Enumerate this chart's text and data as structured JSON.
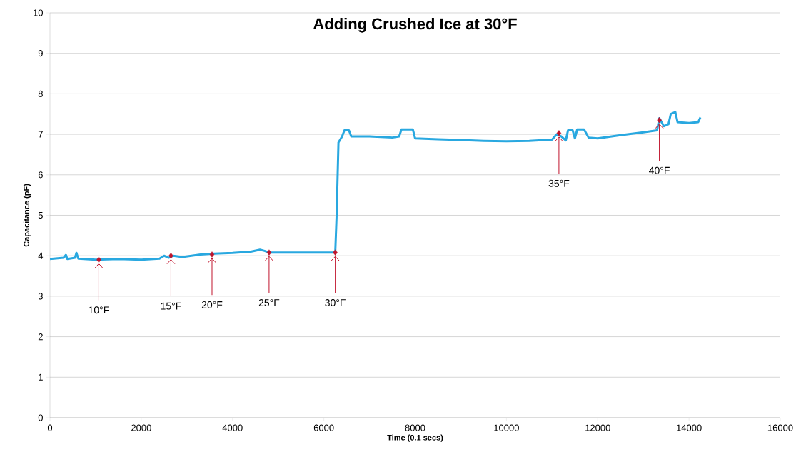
{
  "chart_data": {
    "type": "line",
    "title": "Adding Crushed Ice at 30°F",
    "xlabel": "Time (0.1 secs)",
    "ylabel": "Capacitance (pF)",
    "series": [
      {
        "color": "#29a8e0",
        "marker": "none",
        "x": [
          0,
          300,
          350,
          380,
          550,
          580,
          620,
          1000,
          1500,
          2000,
          2400,
          2500,
          2600,
          2700,
          2900,
          3300,
          3600,
          4000,
          4400,
          4600,
          4700,
          4800,
          5500,
          6250,
          6280,
          6320,
          6400,
          6450,
          6550,
          6600,
          7000,
          7500,
          7650,
          7700,
          7950,
          8000,
          8500,
          9000,
          9500,
          10000,
          10500,
          11000,
          11100,
          11200,
          11300,
          11350,
          11450,
          11500,
          11550,
          11700,
          11800,
          12000,
          12500,
          13000,
          13300,
          13350,
          13450,
          13550,
          13600,
          13700,
          13750,
          14000,
          14200,
          14250
        ],
        "values": [
          3.92,
          3.95,
          4.02,
          3.92,
          3.95,
          4.07,
          3.93,
          3.9,
          3.92,
          3.9,
          3.93,
          4.0,
          3.95,
          4.0,
          3.97,
          4.03,
          4.05,
          4.07,
          4.1,
          4.15,
          4.12,
          4.08,
          4.08,
          4.08,
          5.0,
          6.8,
          6.95,
          7.1,
          7.1,
          6.95,
          6.95,
          6.92,
          6.95,
          7.12,
          7.12,
          6.9,
          6.88,
          6.86,
          6.84,
          6.83,
          6.84,
          6.87,
          7.0,
          6.95,
          6.85,
          7.1,
          7.1,
          6.9,
          7.12,
          7.12,
          6.92,
          6.9,
          6.98,
          7.05,
          7.1,
          7.4,
          7.2,
          7.25,
          7.5,
          7.55,
          7.3,
          7.28,
          7.3,
          7.42
        ]
      },
      {
        "type": "scatter",
        "color": "#c0142c",
        "marker": "diamond",
        "x": [
          1070,
          2650,
          3550,
          4800,
          6250,
          11150,
          13350
        ],
        "values": [
          3.9,
          4.0,
          4.03,
          4.08,
          4.08,
          7.03,
          7.35
        ]
      }
    ],
    "annotations": [
      {
        "text": "10°F",
        "x": 1070,
        "y": 3.9
      },
      {
        "text": "15°F",
        "x": 2650,
        "y": 4.0
      },
      {
        "text": "20°F",
        "x": 3550,
        "y": 4.03
      },
      {
        "text": "25°F",
        "x": 4800,
        "y": 4.08
      },
      {
        "text": "30°F",
        "x": 6250,
        "y": 4.08
      },
      {
        "text": "35°F",
        "x": 11150,
        "y": 7.03
      },
      {
        "text": "40°F",
        "x": 13350,
        "y": 7.35
      }
    ],
    "xlim": [
      0,
      16000
    ],
    "ylim": [
      0,
      10
    ],
    "xticks": [
      0,
      2000,
      4000,
      6000,
      8000,
      10000,
      12000,
      14000,
      16000
    ],
    "yticks": [
      0,
      1,
      2,
      3,
      4,
      5,
      6,
      7,
      8,
      9,
      10
    ],
    "grid": "y"
  }
}
